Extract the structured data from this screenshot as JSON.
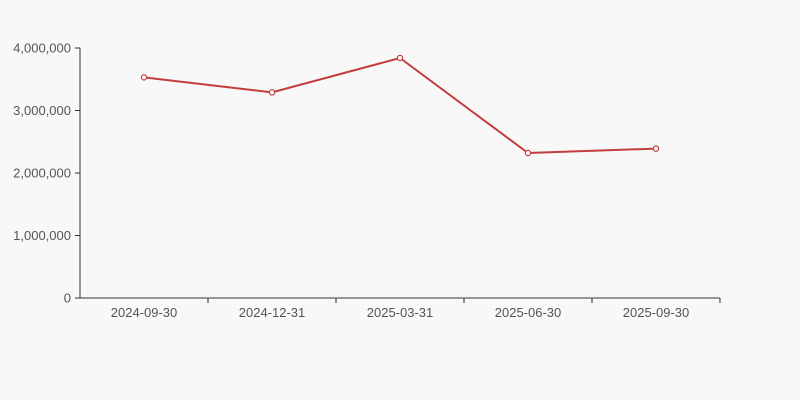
{
  "page": {
    "background_color": "#f8f8f8"
  },
  "chart_data": {
    "type": "line",
    "categories": [
      "2024-09-30",
      "2024-12-31",
      "2025-03-31",
      "2025-06-30",
      "2025-09-30"
    ],
    "values": [
      3530000,
      3290000,
      3840000,
      2320000,
      2390000
    ],
    "xlabel": "",
    "ylabel": "",
    "ylim": [
      0,
      4000000
    ],
    "y_tick_values": [
      0,
      1000000,
      2000000,
      3000000,
      4000000
    ],
    "y_tick_labels": [
      "0",
      "1,000,000",
      "2,000,000",
      "3,000,000",
      "4,000,000"
    ],
    "grid": false,
    "legend_position": "none",
    "line_color": "#c23e3c",
    "marker_fill": "#ffffff",
    "axis_color": "#333333",
    "label_color": "#555555"
  }
}
